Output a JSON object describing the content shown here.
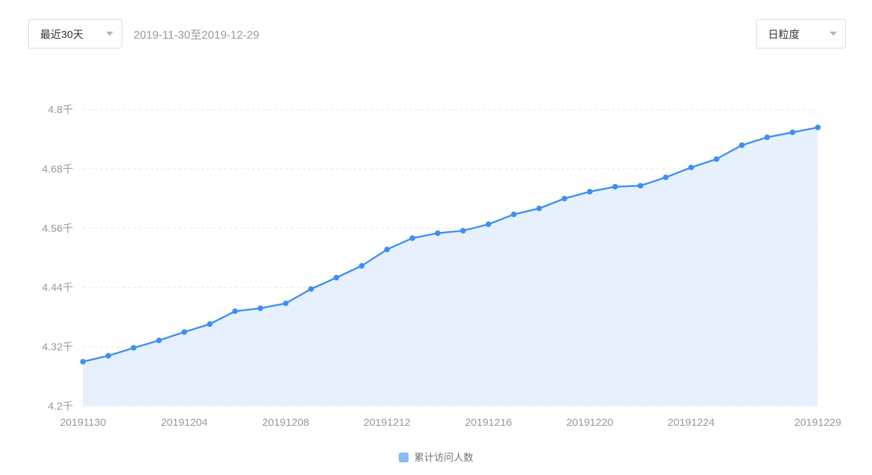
{
  "toolbar": {
    "range_select": {
      "label": "最近30天"
    },
    "date_range": "2019-11-30至2019-12-29",
    "granularity_select": {
      "label": "日粒度"
    }
  },
  "chart_data": {
    "type": "area",
    "title": "",
    "x": [
      "20191130",
      "20191201",
      "20191202",
      "20191203",
      "20191204",
      "20191205",
      "20191206",
      "20191207",
      "20191208",
      "20191209",
      "20191210",
      "20191211",
      "20191212",
      "20191213",
      "20191214",
      "20191215",
      "20191216",
      "20191217",
      "20191218",
      "20191219",
      "20191220",
      "20191221",
      "20191222",
      "20191223",
      "20191224",
      "20191225",
      "20191226",
      "20191227",
      "20191228",
      "20191229"
    ],
    "x_tick_labels": [
      "20191130",
      "20191204",
      "20191208",
      "20191212",
      "20191216",
      "20191220",
      "20191224",
      "20191229"
    ],
    "series": [
      {
        "name": "累计访问人数",
        "values": [
          4290,
          4302,
          4318,
          4333,
          4350,
          4366,
          4392,
          4398,
          4408,
          4437,
          4460,
          4484,
          4517,
          4540,
          4550,
          4555,
          4568,
          4588,
          4600,
          4620,
          4634,
          4644,
          4646,
          4663,
          4683,
          4700,
          4728,
          4744,
          4754,
          4764
        ]
      }
    ],
    "ylim": [
      4200,
      4800
    ],
    "y_ticks": [
      4200,
      4320,
      4440,
      4560,
      4680,
      4800
    ],
    "y_tick_labels": [
      "4.2千",
      "4.32千",
      "4.44千",
      "4.56千",
      "4.68千",
      "4.8千"
    ],
    "grid": true,
    "legend_position": "bottom",
    "colors": {
      "line": "#3E8EF7",
      "area": "#E7F1FD",
      "grid": "#E6E6E6",
      "tick_text": "#999999",
      "legend": "#87BDF3"
    }
  }
}
